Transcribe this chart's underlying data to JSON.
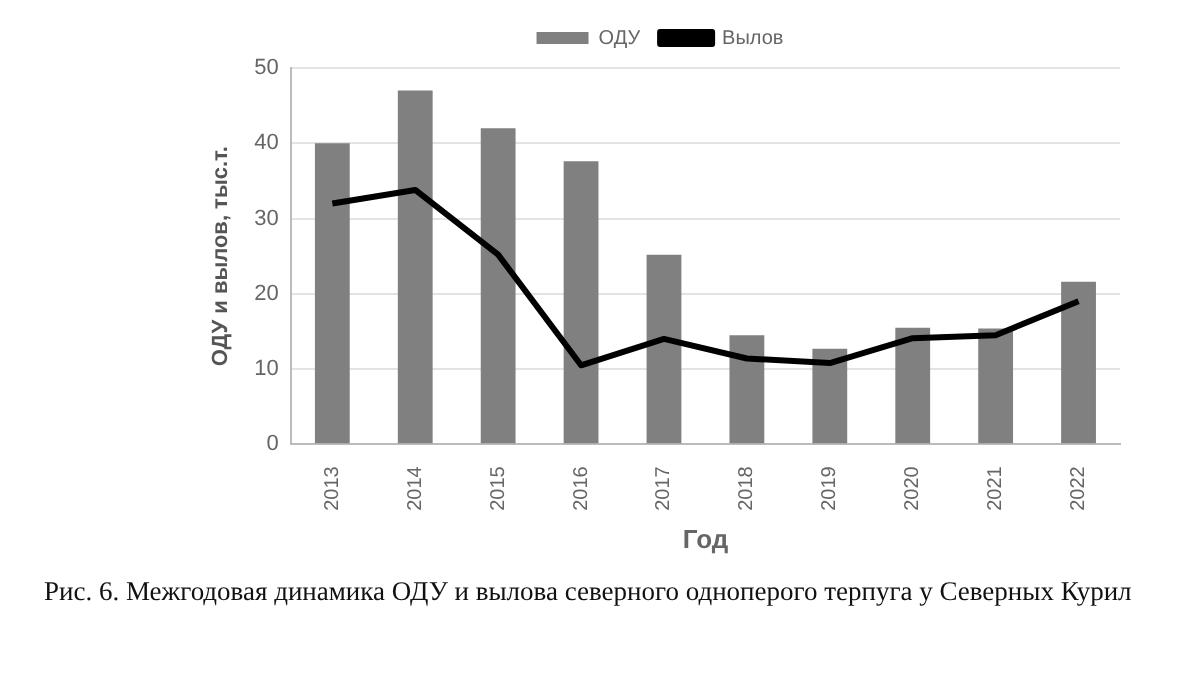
{
  "chart_data": {
    "type": "bar",
    "xlabel": "Год",
    "ylabel": "ОДУ и вылов, тыс.т.",
    "categories": [
      "2013",
      "2014",
      "2015",
      "2016",
      "2017",
      "2018",
      "2019",
      "2020",
      "2021",
      "2022"
    ],
    "series": [
      {
        "name": "ОДУ",
        "color": "#808080",
        "values": [
          40,
          47,
          42,
          37.6,
          25.2,
          14.5,
          12.7,
          15.5,
          15.4,
          21.6
        ]
      },
      {
        "name": "Вылов",
        "type": "line",
        "color": "#000000",
        "values": [
          32,
          33.8,
          25.2,
          10.5,
          14,
          11.4,
          10.8,
          14.1,
          14.5,
          19
        ]
      }
    ],
    "ylim": [
      0,
      50
    ],
    "yticks": [
      0,
      10,
      20,
      30,
      40,
      50
    ],
    "grid": "y",
    "legend": "top",
    "marker": "none",
    "annotations": [
      "Рис. 6. Межгодовая динамика ОДУ и вылова северного одноперого терпуга у Северных Курил"
    ]
  }
}
